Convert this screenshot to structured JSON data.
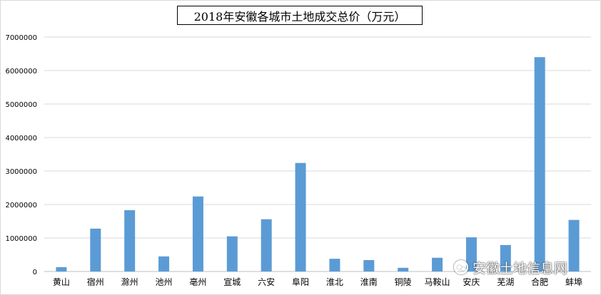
{
  "chart_data": {
    "type": "bar",
    "title": "2018年安徽各城市土地成交总价（万元）",
    "categories": [
      "黄山",
      "宿州",
      "滁州",
      "池州",
      "亳州",
      "宣城",
      "六安",
      "阜阳",
      "淮北",
      "淮南",
      "铜陵",
      "马鞍山",
      "安庆",
      "芜湖",
      "合肥",
      "蚌埠"
    ],
    "values": [
      130000,
      1280000,
      1830000,
      450000,
      2240000,
      1050000,
      1560000,
      3240000,
      380000,
      340000,
      110000,
      410000,
      1020000,
      790000,
      6400000,
      1540000
    ],
    "ylim": [
      0,
      7000000
    ],
    "yticks": [
      "0",
      "1000000",
      "2000000",
      "3000000",
      "4000000",
      "5000000",
      "6000000",
      "7000000"
    ],
    "bar_color": "#5b9bd5",
    "grid": true,
    "legend": "none"
  },
  "watermark": {
    "text": "安徽土地信息网",
    "icon": "wechat-icon"
  }
}
